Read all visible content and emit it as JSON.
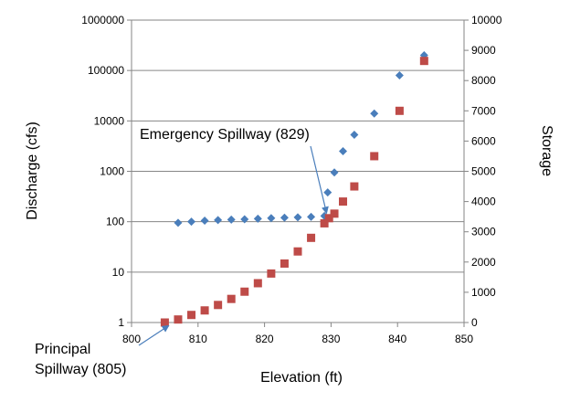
{
  "chart_data": {
    "type": "scatter",
    "title": "",
    "xlabel": "Elevation (ft)",
    "ylabel_left": "Discharge (cfs)",
    "ylabel_right": "Storage",
    "xlim": [
      800,
      850
    ],
    "x_ticks": [
      800,
      810,
      820,
      830,
      840,
      850
    ],
    "ylim_left": [
      1,
      1000000
    ],
    "y_scale_left": "log",
    "y_ticks_left": [
      1,
      10,
      100,
      1000,
      10000,
      100000,
      1000000
    ],
    "ylim_right": [
      0,
      10000
    ],
    "y_scale_right": "linear",
    "y_ticks_right": [
      0,
      1000,
      2000,
      3000,
      4000,
      5000,
      6000,
      7000,
      8000,
      9000,
      10000
    ],
    "grid": "horizontal",
    "legend": "none",
    "series": [
      {
        "axis": "left",
        "marker": "diamond",
        "color": "#4a7ebb",
        "x": [
          807,
          809,
          811,
          813,
          815,
          817,
          819,
          821,
          823,
          825,
          827,
          829,
          829.5,
          830.5,
          831.8,
          833.5,
          836.5,
          840.3,
          844
        ],
        "y": [
          95,
          100,
          105,
          108,
          110,
          112,
          115,
          118,
          120,
          122,
          125,
          130,
          380,
          950,
          2500,
          5300,
          14000,
          80000,
          200000
        ]
      },
      {
        "axis": "right",
        "marker": "square",
        "color": "#be4b48",
        "x": [
          805,
          807,
          809,
          811,
          813,
          815,
          817,
          819,
          821,
          823,
          825,
          827,
          829,
          829.7,
          830.5,
          831.8,
          833.5,
          836.5,
          840.3,
          844
        ],
        "y": [
          0,
          100,
          250,
          400,
          580,
          780,
          1020,
          1300,
          1620,
          1950,
          2350,
          2800,
          3280,
          3450,
          3600,
          4000,
          4500,
          5500,
          7000,
          8650
        ]
      }
    ],
    "annotations": [
      {
        "text": "Emergency Spillway (829)",
        "arrow_to": {
          "x": 829.3,
          "y": 130
        }
      },
      {
        "text_lines": [
          "Principal",
          "Spillway (805)"
        ],
        "arrow_to": {
          "x": 805.2,
          "y": 1
        }
      }
    ]
  }
}
